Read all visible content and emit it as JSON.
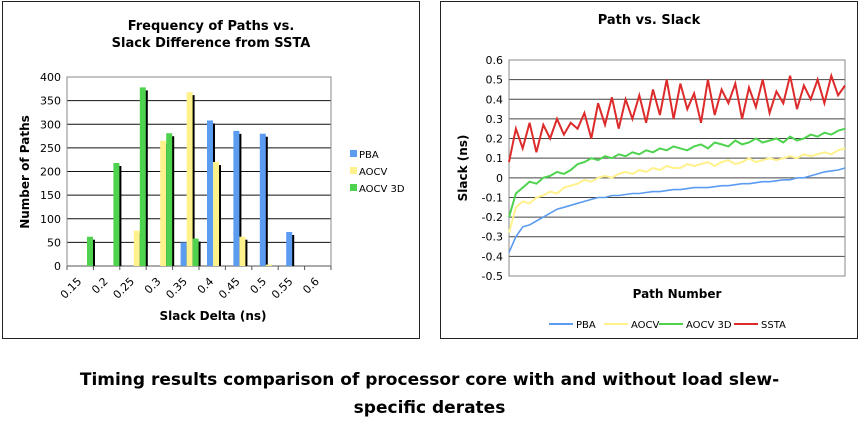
{
  "caption": {
    "line1": "Timing results comparison of processor core with and without load slew-",
    "line2": "specific derates"
  },
  "colors": {
    "PBA": "#5b9bf0",
    "AOCV": "#fff18c",
    "AOCV 3D": "#4fd34f",
    "SSTA": "#dd2a2a"
  },
  "chart_data": [
    {
      "type": "bar",
      "title": "Frequency of Paths vs. Slack Difference from SSTA",
      "title_lines": [
        "Frequency of Paths vs.",
        "Slack Difference from SSTA"
      ],
      "xlabel": "Slack Delta (ns)",
      "ylabel": "Number of Paths",
      "ylim": [
        0,
        400
      ],
      "yticks": [
        "0",
        "50",
        "100",
        "150",
        "200",
        "250",
        "300",
        "350",
        "400"
      ],
      "categories": [
        "0.15",
        "0.2",
        "0.25",
        "0.3",
        "0.35",
        "0.4",
        "0.45",
        "0.5",
        "0.55",
        "0.6"
      ],
      "series": [
        {
          "name": "PBA",
          "values": [
            0,
            0,
            0,
            0,
            50,
            308,
            286,
            280,
            72,
            0
          ]
        },
        {
          "name": "AOCV",
          "values": [
            0,
            0,
            75,
            265,
            368,
            220,
            62,
            3,
            0,
            0
          ]
        },
        {
          "name": "AOCV 3D",
          "values": [
            62,
            218,
            378,
            281,
            58,
            0,
            0,
            0,
            0,
            0
          ]
        }
      ],
      "grid": true,
      "legend": "right"
    },
    {
      "type": "line",
      "title": "Path vs. Slack",
      "xlabel": "Path Number",
      "ylabel": "Slack (ns)",
      "ylim": [
        -0.5,
        0.6
      ],
      "yticks": [
        "-0.5",
        "-0.4",
        "-0.3",
        "-0.2",
        "-0.1",
        "0",
        "0.1",
        "0.2",
        "0.3",
        "0.4",
        "0.5",
        "0.6"
      ],
      "grid": true,
      "legend": "bottom",
      "series": [
        {
          "name": "PBA",
          "values": [
            -0.38,
            -0.3,
            -0.25,
            -0.24,
            -0.22,
            -0.2,
            -0.18,
            -0.16,
            -0.15,
            -0.14,
            -0.13,
            -0.12,
            -0.11,
            -0.1,
            -0.1,
            -0.09,
            -0.09,
            -0.085,
            -0.08,
            -0.08,
            -0.075,
            -0.07,
            -0.07,
            -0.065,
            -0.06,
            -0.06,
            -0.055,
            -0.05,
            -0.05,
            -0.05,
            -0.045,
            -0.04,
            -0.04,
            -0.035,
            -0.03,
            -0.03,
            -0.025,
            -0.02,
            -0.02,
            -0.015,
            -0.01,
            -0.01,
            0,
            0,
            0.01,
            0.02,
            0.03,
            0.035,
            0.04,
            0.05
          ]
        },
        {
          "name": "AOCV",
          "values": [
            -0.28,
            -0.15,
            -0.12,
            -0.13,
            -0.1,
            -0.09,
            -0.07,
            -0.08,
            -0.05,
            -0.04,
            -0.03,
            -0.01,
            -0.02,
            0,
            0.01,
            0,
            0.02,
            0.03,
            0.02,
            0.04,
            0.03,
            0.05,
            0.04,
            0.06,
            0.05,
            0.05,
            0.07,
            0.06,
            0.07,
            0.08,
            0.06,
            0.08,
            0.09,
            0.07,
            0.08,
            0.1,
            0.08,
            0.09,
            0.1,
            0.09,
            0.1,
            0.11,
            0.1,
            0.12,
            0.11,
            0.12,
            0.13,
            0.12,
            0.14,
            0.15
          ]
        },
        {
          "name": "AOCV 3D",
          "values": [
            -0.2,
            -0.08,
            -0.05,
            -0.02,
            -0.03,
            0,
            0.01,
            0.03,
            0.02,
            0.04,
            0.07,
            0.08,
            0.1,
            0.09,
            0.11,
            0.1,
            0.12,
            0.11,
            0.13,
            0.12,
            0.14,
            0.13,
            0.15,
            0.14,
            0.16,
            0.15,
            0.14,
            0.16,
            0.17,
            0.15,
            0.18,
            0.17,
            0.16,
            0.19,
            0.17,
            0.18,
            0.2,
            0.18,
            0.19,
            0.2,
            0.18,
            0.21,
            0.19,
            0.2,
            0.22,
            0.21,
            0.23,
            0.22,
            0.24,
            0.25
          ]
        },
        {
          "name": "SSTA",
          "values": [
            0.08,
            0.25,
            0.15,
            0.28,
            0.13,
            0.27,
            0.2,
            0.3,
            0.22,
            0.28,
            0.25,
            0.33,
            0.2,
            0.38,
            0.27,
            0.41,
            0.25,
            0.4,
            0.3,
            0.42,
            0.28,
            0.45,
            0.32,
            0.5,
            0.3,
            0.48,
            0.35,
            0.43,
            0.28,
            0.5,
            0.32,
            0.45,
            0.38,
            0.48,
            0.3,
            0.46,
            0.36,
            0.5,
            0.33,
            0.44,
            0.38,
            0.52,
            0.35,
            0.47,
            0.4,
            0.5,
            0.38,
            0.52,
            0.42,
            0.47
          ]
        }
      ]
    }
  ]
}
